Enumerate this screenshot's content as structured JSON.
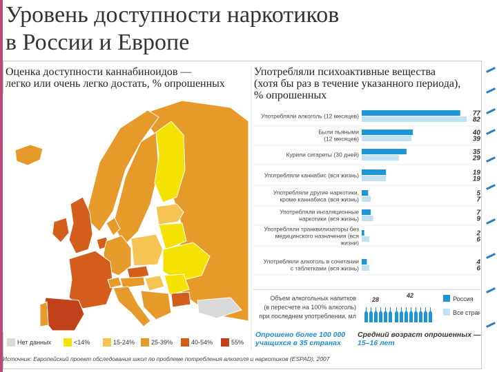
{
  "title_lines": [
    "Уровень доступности наркотиков",
    "в России и Европе"
  ],
  "map": {
    "title_lines": [
      "Оценка доступности каннабиноидов —",
      "легко или очень легко достать, % опрошенных"
    ],
    "legend": [
      {
        "label": "Нет данных",
        "color": "#d9d9d9"
      },
      {
        "label": "<14%",
        "color": "#f6e200"
      },
      {
        "label": "15-24%",
        "color": "#f5c452"
      },
      {
        "label": "25-39%",
        "color": "#e59a2a"
      },
      {
        "label": "40-54%",
        "color": "#d55d1c"
      },
      {
        "label": "55%",
        "color": "#c2401a"
      }
    ]
  },
  "source": "Источник: Европейский проект обследования школ по проблеме потребления алкоголя и наркотиков (ESPAD), 2007",
  "bars": {
    "title_lines": [
      "Употребляли психоактивные вещества",
      "(хотя бы раз в течение указанного периода),",
      "% опрошенных"
    ],
    "series_colors": {
      "russia": "#1f95d3",
      "europe": "#bfe1f3"
    }
  },
  "bottle": {
    "label_lines": [
      "Объем алкогольных напитков",
      "(в пересчете на 100% алкоголь)",
      "при последнем употреблении, мл"
    ],
    "russia_value": "42",
    "europe_value": "28",
    "legend_russia": "Россия",
    "legend_europe": "Все страны"
  },
  "notes": {
    "surveyed_lines": [
      "Опрошено более 100 000",
      "учащихся в 35 странах"
    ],
    "age_lines": [
      "Средний возраст опрошенных —",
      "15–16 лет"
    ]
  },
  "chart_data": {
    "type": "bar",
    "orientation": "horizontal",
    "categories": [
      "Употребляли алкоголь (12 месяцев)",
      "Были пьяными (12 месяцев)",
      "Курили сигареты (30 дней)",
      "Употребляли каннабис (вся жизнь)",
      "Употребляли другие наркотики, кроме каннабиса (вся жизнь)",
      "Употребляли ингаляционные наркотики (вся жизнь)",
      "Употребляли транквилизаторы без медицинского назначения (вся жизнь)",
      "Употребляли алкоголь в сочетании с таблетками (вся жизнь)"
    ],
    "label_lines": [
      [
        "Употребляли алкоголь (12 месяцев)"
      ],
      [
        "Были пьяными",
        "(12 месяцев)"
      ],
      [
        "Курили сигареты (30 дней)"
      ],
      [
        "Употребляли каннабис (вся жизнь)"
      ],
      [
        "Употребляли другие наркотики,",
        "кроме каннабиса (вся жизнь)"
      ],
      [
        "Употребляли ингаляционные",
        "наркотики (вся жизнь)"
      ],
      [
        "Употребляли транквилизаторы без",
        "медицинского назначения (вся",
        "жизни)"
      ],
      [
        "Употребляли алкоголь в сочетании",
        "с таблетками (вся жизнь)"
      ]
    ],
    "series": [
      {
        "values": [
          77,
          40,
          35,
          19,
          5,
          7,
          2,
          4
        ]
      },
      {
        "values": [
          82,
          39,
          29,
          19,
          7,
          9,
          6,
          6
        ]
      }
    ],
    "xlim": [
      0,
      82
    ]
  }
}
